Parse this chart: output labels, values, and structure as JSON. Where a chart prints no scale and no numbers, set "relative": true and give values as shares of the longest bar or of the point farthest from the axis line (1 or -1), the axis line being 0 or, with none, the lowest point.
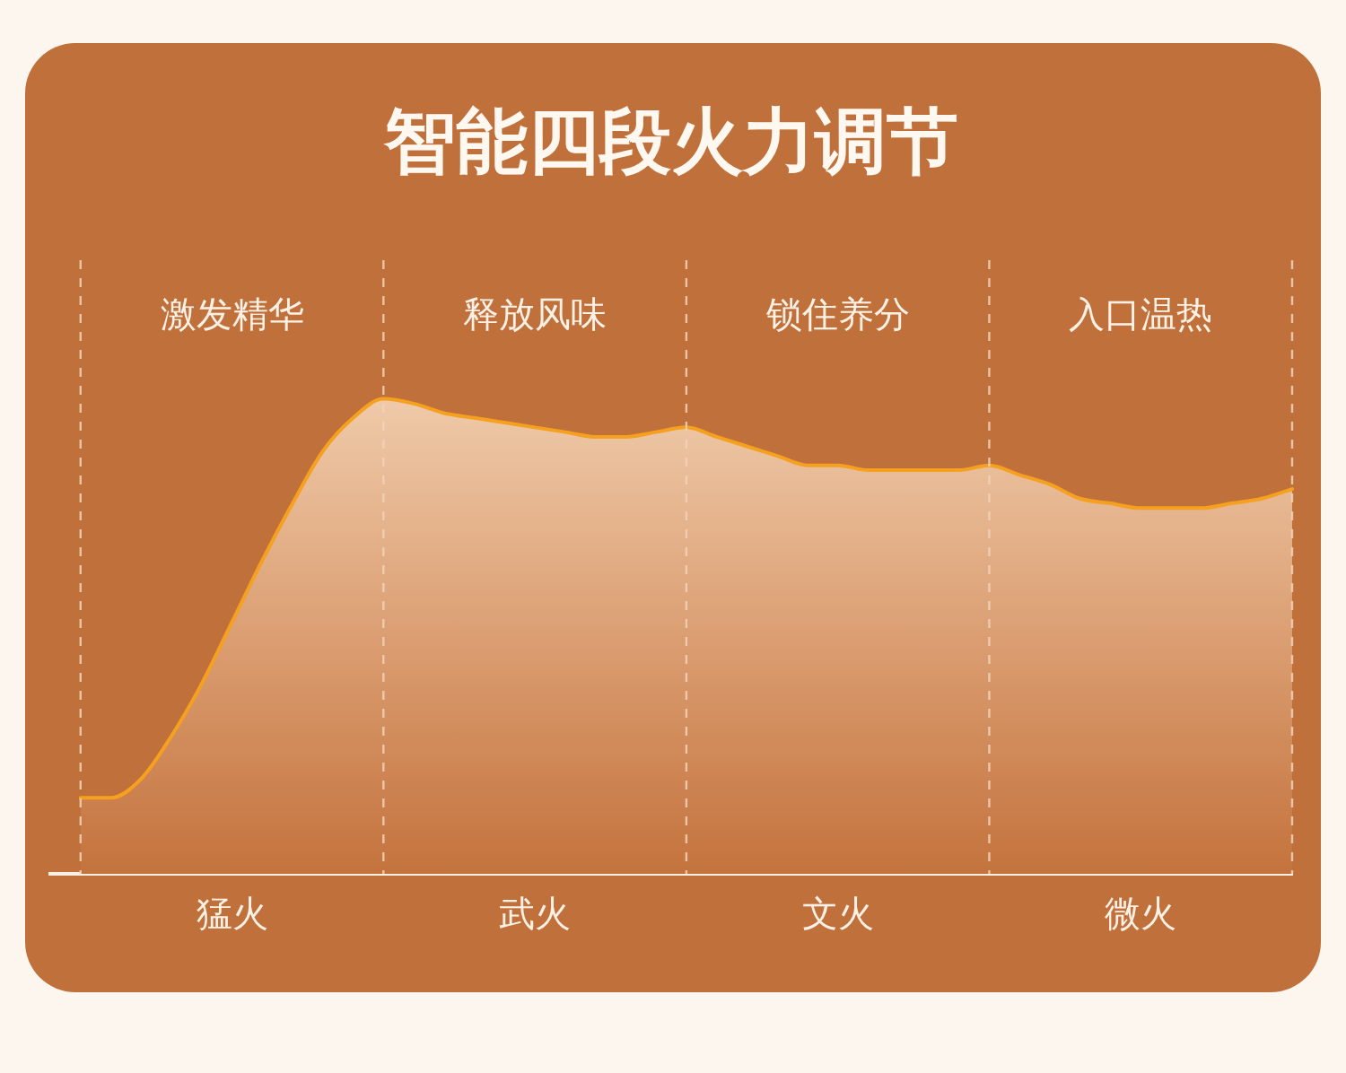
{
  "chart_data": {
    "type": "area",
    "title": "智能四段火力调节",
    "relative": true,
    "categories": [
      null,
      null,
      null,
      null,
      null,
      null,
      "猛火",
      null,
      null,
      null,
      null,
      null,
      null,
      null,
      null,
      null,
      "武火",
      null,
      null,
      null,
      null,
      null,
      null,
      null,
      null,
      null,
      "文火",
      null,
      null,
      null,
      null,
      null,
      null,
      null,
      null,
      null,
      "微火",
      null,
      null,
      null,
      null,
      null
    ],
    "values": [
      null,
      0.16,
      0.16,
      0.2,
      0.29,
      0.4,
      0.53,
      0.66,
      0.78,
      0.89,
      0.96,
      1.0,
      0.99,
      0.97,
      0.96,
      0.95,
      0.94,
      0.93,
      0.92,
      0.92,
      0.93,
      0.94,
      0.92,
      0.9,
      0.88,
      0.86,
      0.86,
      0.85,
      0.85,
      0.85,
      0.85,
      0.86,
      0.84,
      0.82,
      0.79,
      0.78,
      0.77,
      0.77,
      0.77,
      0.78,
      0.79,
      0.81
    ],
    "color": "#f5a01e",
    "marker": "none",
    "legend": false,
    "grid": "x",
    "annotations": [
      "激发精华",
      "释放风味",
      "锁住养分",
      "入口温热"
    ]
  }
}
